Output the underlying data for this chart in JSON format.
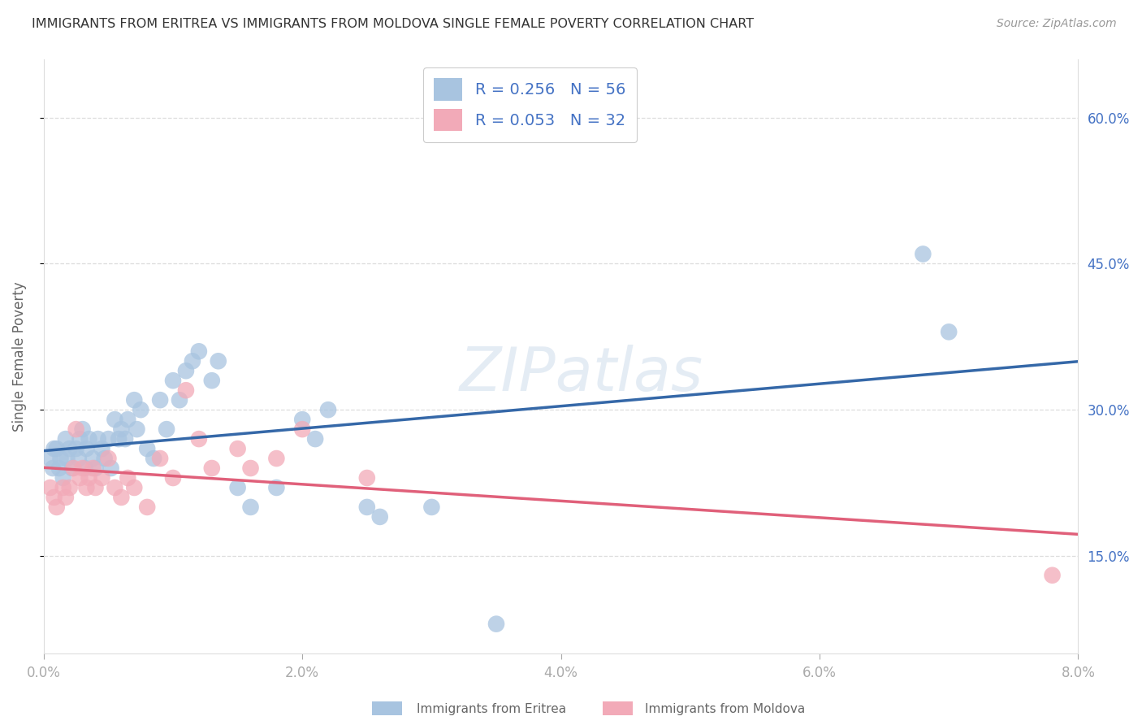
{
  "title": "IMMIGRANTS FROM ERITREA VS IMMIGRANTS FROM MOLDOVA SINGLE FEMALE POVERTY CORRELATION CHART",
  "source": "Source: ZipAtlas.com",
  "ylabel": "Single Female Poverty",
  "x_tick_labels": [
    "0.0%",
    "2.0%",
    "4.0%",
    "6.0%",
    "8.0%"
  ],
  "x_tick_vals": [
    0.0,
    2.0,
    4.0,
    6.0,
    8.0
  ],
  "y_tick_labels": [
    "15.0%",
    "30.0%",
    "45.0%",
    "60.0%"
  ],
  "y_tick_vals": [
    15.0,
    30.0,
    45.0,
    60.0
  ],
  "xlim": [
    0.0,
    8.0
  ],
  "ylim": [
    5.0,
    66.0
  ],
  "legend_eritrea": "Immigrants from Eritrea",
  "legend_moldova": "Immigrants from Moldova",
  "color_eritrea": "#a8c4e0",
  "color_eritrea_line": "#3568a8",
  "color_moldova": "#f2aab8",
  "color_moldova_line": "#e0607a",
  "watermark": "ZIPatlas",
  "background": "#ffffff",
  "eritrea_x": [
    0.05,
    0.07,
    0.08,
    0.1,
    0.12,
    0.13,
    0.15,
    0.17,
    0.18,
    0.2,
    0.22,
    0.25,
    0.27,
    0.28,
    0.3,
    0.32,
    0.33,
    0.35,
    0.38,
    0.4,
    0.42,
    0.45,
    0.47,
    0.5,
    0.52,
    0.55,
    0.58,
    0.6,
    0.63,
    0.65,
    0.7,
    0.72,
    0.75,
    0.8,
    0.85,
    0.9,
    0.95,
    1.0,
    1.05,
    1.1,
    1.15,
    1.2,
    1.3,
    1.35,
    1.5,
    1.6,
    1.8,
    2.0,
    2.1,
    2.2,
    2.5,
    2.6,
    3.0,
    3.5,
    6.8,
    7.0
  ],
  "eritrea_y": [
    25.0,
    24.0,
    26.0,
    26.0,
    24.0,
    25.0,
    23.0,
    27.0,
    25.0,
    26.0,
    24.0,
    26.0,
    25.0,
    27.0,
    28.0,
    24.0,
    26.0,
    27.0,
    25.0,
    24.0,
    27.0,
    26.0,
    25.0,
    27.0,
    24.0,
    29.0,
    27.0,
    28.0,
    27.0,
    29.0,
    31.0,
    28.0,
    30.0,
    26.0,
    25.0,
    31.0,
    28.0,
    33.0,
    31.0,
    34.0,
    35.0,
    36.0,
    33.0,
    35.0,
    22.0,
    20.0,
    22.0,
    29.0,
    27.0,
    30.0,
    20.0,
    19.0,
    20.0,
    8.0,
    46.0,
    38.0
  ],
  "moldova_x": [
    0.05,
    0.08,
    0.1,
    0.15,
    0.17,
    0.2,
    0.23,
    0.25,
    0.28,
    0.3,
    0.33,
    0.35,
    0.38,
    0.4,
    0.45,
    0.5,
    0.55,
    0.6,
    0.65,
    0.7,
    0.8,
    0.9,
    1.0,
    1.1,
    1.2,
    1.3,
    1.5,
    1.6,
    1.8,
    2.0,
    2.5,
    7.8
  ],
  "moldova_y": [
    22.0,
    21.0,
    20.0,
    22.0,
    21.0,
    22.0,
    24.0,
    28.0,
    23.0,
    24.0,
    22.0,
    23.0,
    24.0,
    22.0,
    23.0,
    25.0,
    22.0,
    21.0,
    23.0,
    22.0,
    20.0,
    25.0,
    23.0,
    32.0,
    27.0,
    24.0,
    26.0,
    24.0,
    25.0,
    28.0,
    23.0,
    13.0
  ]
}
